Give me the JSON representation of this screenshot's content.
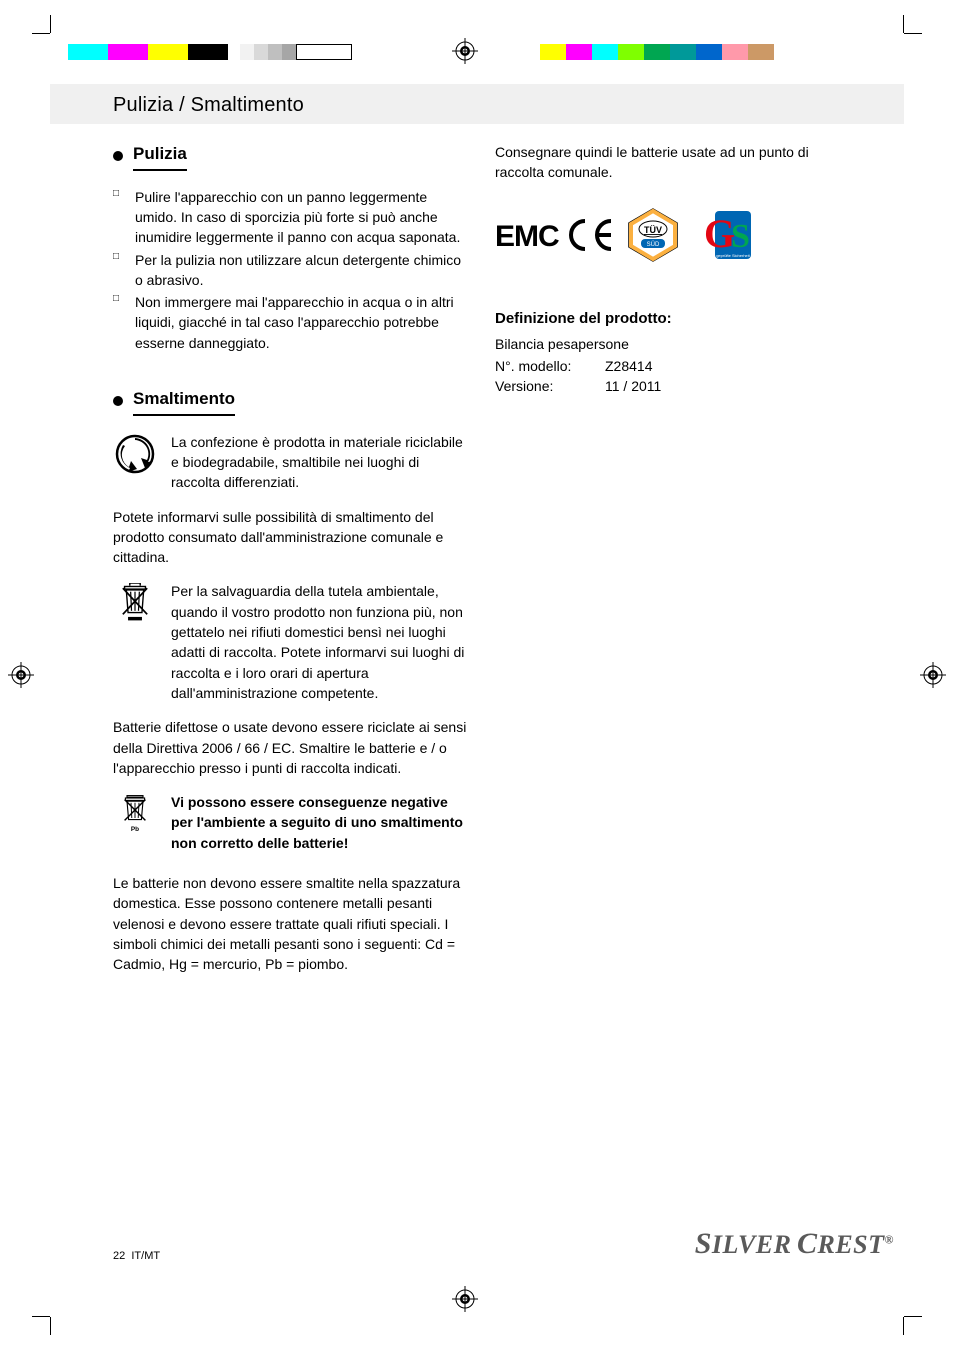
{
  "header_band": "Pulizia / Smaltimento",
  "left": {
    "sec1_title": "Pulizia",
    "sec1_items": [
      "Pulire l'apparecchio con un panno leggermente umido. In caso di sporcizia più forte si può anche inumidire leggermente il panno con acqua saponata.",
      "Per la pulizia non utilizzare alcun detergente chimico o abrasivo.",
      "Non immergere mai l'apparecchio in acqua o in altri liquidi, giacché in tal caso l'apparecchio potrebbe esserne danneggiato."
    ],
    "sec2_title": "Smaltimento",
    "recycle_text": "La confezione è prodotta in materiale riciclabile e biodegradabile, smaltibile nei luoghi di raccolta differenziati.",
    "para1": "Potete informarvi sulle possibilità di smaltimento del prodotto consumato dall'amministrazione comunale e cittadina.",
    "bin_text": "Per la salvaguardia della tutela ambientale, quando il vostro prodotto non funziona più, non gettatelo nei rifiuti domestici bensì nei luoghi adatti di raccolta. Potete informarvi sui luoghi di raccolta e i loro orari di apertura dall'amministrazione competente.",
    "para2": "Batterie difettose o usate devono essere riciclate ai sensi della Direttiva 2006 / 66 / EC. Smaltire le batterie e / o l'apparecchio presso i punti di raccolta indicati.",
    "batt_text": "Vi possono essere conseguenze negative per l'ambiente a seguito di uno smaltimento non corretto delle batterie!",
    "para3": "Le batterie non devono essere smaltite nella spazzatura domestica. Esse possono contenere metalli pesanti velenosi e devono essere trattate quali rifiuti speciali. I simboli chimici dei metalli pesanti sono i seguenti: Cd = Cadmio, Hg = mercurio, Pb = piombo."
  },
  "right": {
    "para_top": "Consegnare quindi le batterie usate ad un punto di raccolta comunale.",
    "emc_label": "EMC",
    "def_heading": "Definizione del prodotto:",
    "def_line1": "Bilancia pesapersone",
    "def_rows": [
      {
        "lbl": "N°. modello:",
        "val": "Z28414"
      },
      {
        "lbl": "Versione:",
        "val": "11 / 2011"
      }
    ]
  },
  "footer": {
    "page_num": "22",
    "page_lang": "IT/MT",
    "brand": "SilverCrest"
  },
  "colors": {
    "colorbar_right": [
      "#ffff00",
      "#ff00ff",
      "#00ffff",
      "#7fff00",
      "#00a651",
      "#009999",
      "#0066cc",
      "#ff99aa",
      "#cc9966"
    ],
    "colorbar_left": [
      "#00ffff",
      "#ff00ff",
      "#ffff00",
      "#000000"
    ],
    "gray_steps": [
      "#f2f2f2",
      "#d9d9d9",
      "#bfbfbf",
      "#a6a6a6"
    ]
  }
}
